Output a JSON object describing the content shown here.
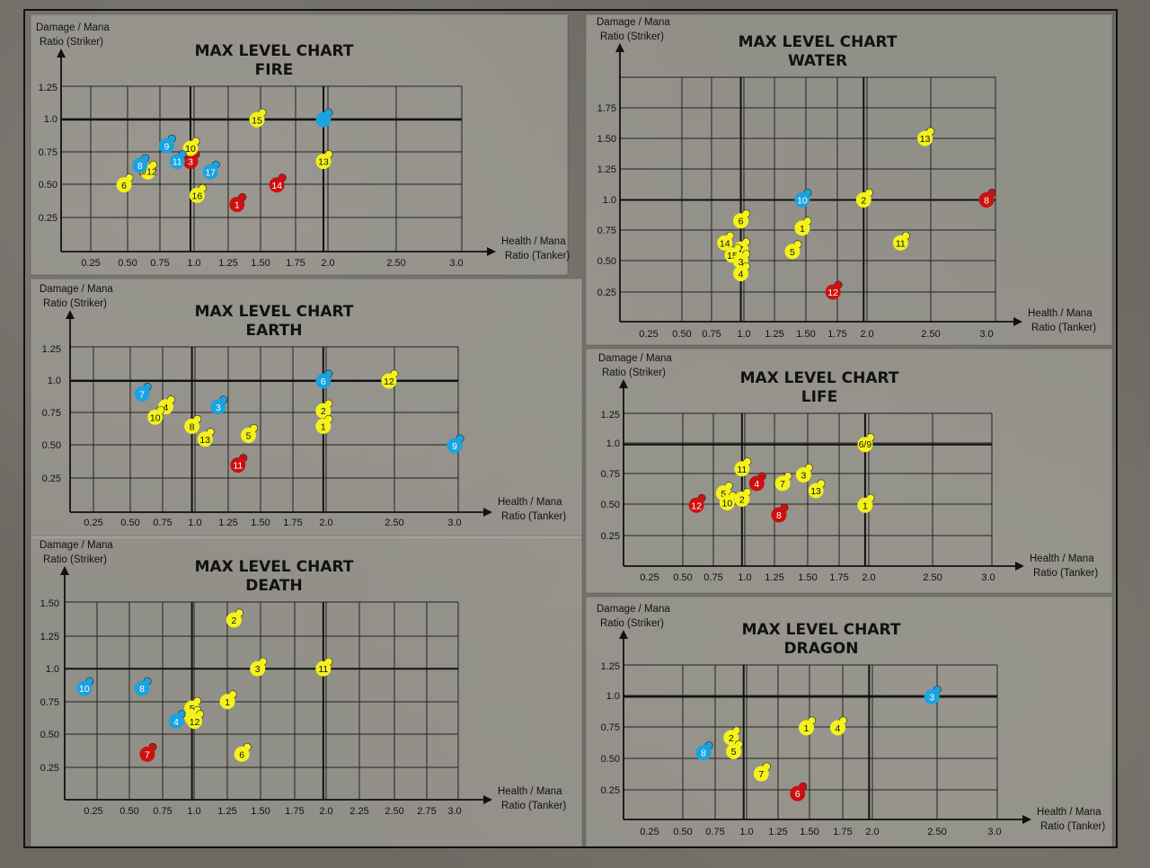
{
  "colors": {
    "yellow": "#f4f21a",
    "blue": "#1aa3e0",
    "red": "#cc1010"
  },
  "chart_data": [
    {
      "type": "scatter",
      "title": [
        "MAX LEVEL CHART",
        "FIRE"
      ],
      "xlabel": [
        "Health / Mana",
        "Ratio (Tanker)"
      ],
      "ylabel": [
        "Damage / Mana",
        "Ratio (Striker)"
      ],
      "xticks": [
        "0.25",
        "0.50",
        "0.75",
        "1.0",
        "1.25",
        "1.50",
        "1.75",
        "2.0",
        "2.50",
        "3.0"
      ],
      "yticks": [
        "0.25",
        "0.50",
        "0.75",
        "1.0",
        "1.25"
      ],
      "points": [
        {
          "label": "1",
          "x": 1.35,
          "y": 0.35,
          "color": "red"
        },
        {
          "label": "3",
          "x": 1.0,
          "y": 0.68,
          "color": "red"
        },
        {
          "label": "14",
          "x": 1.65,
          "y": 0.5,
          "color": "red"
        },
        {
          "label": "15",
          "x": 1.5,
          "y": 1.0,
          "color": "yellow"
        },
        {
          "label": "13",
          "x": 2.0,
          "y": 0.68,
          "color": "yellow"
        },
        {
          "label": "16",
          "x": 1.05,
          "y": 0.42,
          "color": "yellow"
        },
        {
          "label": "6",
          "x": 0.5,
          "y": 0.5,
          "color": "yellow"
        },
        {
          "label": "5/12",
          "x": 0.68,
          "y": 0.6,
          "color": "yellow"
        },
        {
          "label": "10",
          "x": 1.0,
          "y": 0.78,
          "color": "yellow"
        },
        {
          "label": "9",
          "x": 0.82,
          "y": 0.8,
          "color": "blue"
        },
        {
          "label": "8",
          "x": 0.62,
          "y": 0.65,
          "color": "blue"
        },
        {
          "label": "11",
          "x": 0.9,
          "y": 0.68,
          "color": "blue"
        },
        {
          "label": "17",
          "x": 1.15,
          "y": 0.6,
          "color": "blue"
        },
        {
          "label": "",
          "x": 2.0,
          "y": 1.0,
          "color": "blue"
        }
      ]
    },
    {
      "type": "scatter",
      "title": [
        "MAX LEVEL CHART",
        "EARTH"
      ],
      "xlabel": [
        "Health / Mana",
        "Ratio (Tanker)"
      ],
      "ylabel": [
        "Damage / Mana",
        "Ratio (Striker)"
      ],
      "xticks": [
        "0.25",
        "0.50",
        "0.75",
        "1.0",
        "1.25",
        "1.50",
        "1.75",
        "2.0",
        "2.50",
        "3.0"
      ],
      "yticks": [
        "0.25",
        "0.50",
        "0.75",
        "1.0",
        "1.25"
      ],
      "points": [
        {
          "label": "7",
          "x": 0.62,
          "y": 0.9,
          "color": "blue"
        },
        {
          "label": "3",
          "x": 1.2,
          "y": 0.8,
          "color": "blue"
        },
        {
          "label": "6",
          "x": 2.0,
          "y": 1.0,
          "color": "blue"
        },
        {
          "label": "9",
          "x": 3.0,
          "y": 0.5,
          "color": "blue"
        },
        {
          "label": "12",
          "x": 2.5,
          "y": 1.0,
          "color": "yellow"
        },
        {
          "label": "4",
          "x": 0.8,
          "y": 0.8,
          "color": "yellow"
        },
        {
          "label": "10",
          "x": 0.72,
          "y": 0.72,
          "color": "yellow"
        },
        {
          "label": "8",
          "x": 1.0,
          "y": 0.65,
          "color": "yellow"
        },
        {
          "label": "13",
          "x": 1.1,
          "y": 0.55,
          "color": "yellow"
        },
        {
          "label": "5",
          "x": 1.43,
          "y": 0.58,
          "color": "yellow"
        },
        {
          "label": "2",
          "x": 2.0,
          "y": 0.77,
          "color": "yellow"
        },
        {
          "label": "1",
          "x": 2.0,
          "y": 0.65,
          "color": "yellow"
        },
        {
          "label": "11",
          "x": 1.35,
          "y": 0.35,
          "color": "red"
        }
      ]
    },
    {
      "type": "scatter",
      "title": [
        "MAX LEVEL CHART",
        "DEATH"
      ],
      "xlabel": [
        "Health / Mana",
        "Ratio (Tanker)"
      ],
      "ylabel": [
        "Damage / Mana",
        "Ratio (Striker)"
      ],
      "xticks": [
        "0.25",
        "0.50",
        "0.75",
        "1.0",
        "1.25",
        "1.50",
        "1.75",
        "2.0",
        "2.25",
        "2.50",
        "2.75",
        "3.0"
      ],
      "yticks": [
        "0.25",
        "0.50",
        "0.75",
        "1.0",
        "1.25",
        "1.50"
      ],
      "points": [
        {
          "label": "2",
          "x": 1.32,
          "y": 1.37,
          "color": "yellow"
        },
        {
          "label": "3",
          "x": 1.5,
          "y": 1.0,
          "color": "yellow"
        },
        {
          "label": "11",
          "x": 2.0,
          "y": 1.0,
          "color": "yellow"
        },
        {
          "label": "1",
          "x": 1.27,
          "y": 0.75,
          "color": "yellow"
        },
        {
          "label": "5",
          "x": 1.0,
          "y": 0.7,
          "color": "yellow"
        },
        {
          "label": "9",
          "x": 1.0,
          "y": 0.63,
          "color": "yellow"
        },
        {
          "label": "12",
          "x": 1.02,
          "y": 0.6,
          "color": "yellow"
        },
        {
          "label": "6",
          "x": 1.38,
          "y": 0.35,
          "color": "yellow"
        },
        {
          "label": "10",
          "x": 0.18,
          "y": 0.85,
          "color": "blue"
        },
        {
          "label": "8",
          "x": 0.62,
          "y": 0.85,
          "color": "blue"
        },
        {
          "label": "4",
          "x": 0.88,
          "y": 0.6,
          "color": "blue"
        },
        {
          "label": "7",
          "x": 0.66,
          "y": 0.35,
          "color": "red"
        }
      ]
    },
    {
      "type": "scatter",
      "title": [
        "MAX LEVEL CHART",
        "WATER"
      ],
      "xlabel": [
        "Health / Mana",
        "Ratio (Tanker)"
      ],
      "ylabel": [
        "Damage / Mana",
        "Ratio (Striker)"
      ],
      "xticks": [
        "0.25",
        "0.50",
        "0.75",
        "1.0",
        "1.25",
        "1.50",
        "1.75",
        "2.0",
        "2.50",
        "3.0"
      ],
      "yticks": [
        "0.25",
        "0.50",
        "0.75",
        "1.0",
        "1.25",
        "1.50",
        "1.75"
      ],
      "points": [
        {
          "label": "13",
          "x": 2.5,
          "y": 1.5,
          "color": "yellow"
        },
        {
          "label": "2",
          "x": 2.0,
          "y": 1.0,
          "color": "yellow"
        },
        {
          "label": "10",
          "x": 1.5,
          "y": 1.0,
          "color": "blue"
        },
        {
          "label": "8",
          "x": 3.0,
          "y": 1.0,
          "color": "red"
        },
        {
          "label": "6",
          "x": 1.0,
          "y": 0.83,
          "color": "yellow"
        },
        {
          "label": "1",
          "x": 1.5,
          "y": 0.77,
          "color": "yellow"
        },
        {
          "label": "11",
          "x": 2.3,
          "y": 0.65,
          "color": "yellow"
        },
        {
          "label": "5",
          "x": 1.42,
          "y": 0.58,
          "color": "yellow"
        },
        {
          "label": "14",
          "x": 0.87,
          "y": 0.65,
          "color": "yellow"
        },
        {
          "label": "7",
          "x": 1.0,
          "y": 0.6,
          "color": "yellow"
        },
        {
          "label": "15",
          "x": 0.93,
          "y": 0.55,
          "color": "yellow"
        },
        {
          "label": "3",
          "x": 1.0,
          "y": 0.5,
          "color": "yellow"
        },
        {
          "label": "4",
          "x": 1.0,
          "y": 0.4,
          "color": "yellow"
        },
        {
          "label": "12",
          "x": 1.75,
          "y": 0.25,
          "color": "red"
        }
      ]
    },
    {
      "type": "scatter",
      "title": [
        "MAX LEVEL CHART",
        "LIFE"
      ],
      "xlabel": [
        "Health / Mana",
        "Ratio (Tanker)"
      ],
      "ylabel": [
        "Damage / Mana",
        "Ratio (Striker)"
      ],
      "xticks": [
        "0.25",
        "0.50",
        "0.75",
        "1.0",
        "1.25",
        "1.50",
        "1.75",
        "2.0",
        "2.50",
        "3.0"
      ],
      "yticks": [
        "0.25",
        "0.50",
        "0.75",
        "1.0",
        "1.25"
      ],
      "points": [
        {
          "label": "6/9",
          "x": 2.0,
          "y": 1.0,
          "color": "yellow"
        },
        {
          "label": "11",
          "x": 1.0,
          "y": 0.8,
          "color": "yellow"
        },
        {
          "label": "3",
          "x": 1.5,
          "y": 0.75,
          "color": "yellow"
        },
        {
          "label": "7",
          "x": 1.33,
          "y": 0.68,
          "color": "yellow"
        },
        {
          "label": "13",
          "x": 1.6,
          "y": 0.62,
          "color": "yellow"
        },
        {
          "label": "5",
          "x": 0.85,
          "y": 0.6,
          "color": "yellow"
        },
        {
          "label": "10",
          "x": 0.88,
          "y": 0.52,
          "color": "yellow"
        },
        {
          "label": "2",
          "x": 1.0,
          "y": 0.55,
          "color": "yellow"
        },
        {
          "label": "1",
          "x": 2.0,
          "y": 0.5,
          "color": "yellow"
        },
        {
          "label": "4",
          "x": 1.12,
          "y": 0.68,
          "color": "red"
        },
        {
          "label": "8",
          "x": 1.3,
          "y": 0.42,
          "color": "red"
        },
        {
          "label": "12",
          "x": 0.63,
          "y": 0.5,
          "color": "red"
        }
      ]
    },
    {
      "type": "scatter",
      "title": [
        "MAX LEVEL CHART",
        "DRAGON"
      ],
      "xlabel": [
        "Health / Mana",
        "Ratio (Tanker)"
      ],
      "ylabel": [
        "Damage / Mana",
        "Ratio (Striker)"
      ],
      "xticks": [
        "0.25",
        "0.50",
        "0.75",
        "1.0",
        "1.25",
        "1.50",
        "1.75",
        "2.0",
        "2.50",
        "3.0"
      ],
      "yticks": [
        "0.25",
        "0.50",
        "0.75",
        "1.0",
        "1.25"
      ],
      "points": [
        {
          "label": "3",
          "x": 2.5,
          "y": 1.0,
          "color": "blue"
        },
        {
          "label": "2",
          "x": 0.9,
          "y": 0.67,
          "color": "yellow"
        },
        {
          "label": "5",
          "x": 0.92,
          "y": 0.56,
          "color": "yellow"
        },
        {
          "label": "1",
          "x": 1.5,
          "y": 0.75,
          "color": "yellow"
        },
        {
          "label": "4",
          "x": 1.75,
          "y": 0.75,
          "color": "yellow"
        },
        {
          "label": "7",
          "x": 1.14,
          "y": 0.38,
          "color": "yellow"
        },
        {
          "label": "8",
          "x": 0.68,
          "y": 0.55,
          "color": "blue"
        },
        {
          "label": "6",
          "x": 1.43,
          "y": 0.22,
          "color": "red"
        }
      ]
    }
  ]
}
